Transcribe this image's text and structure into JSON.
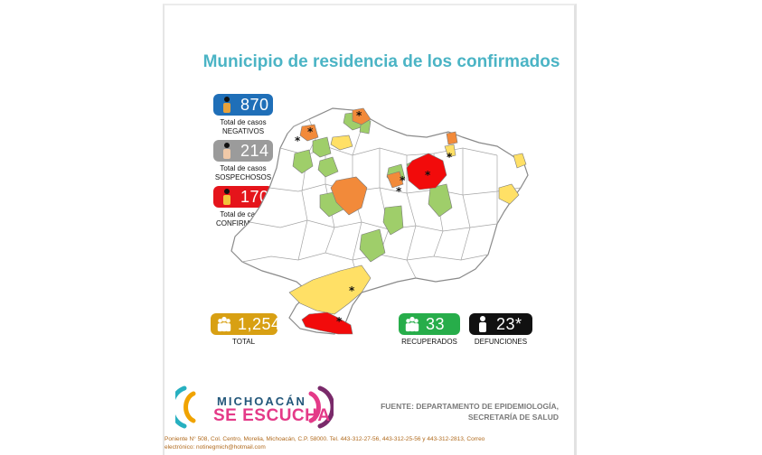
{
  "title": "Municipio de residencia de los confirmados",
  "stats": {
    "negativos": {
      "value": "870",
      "line1": "Total de casos",
      "line2": "NEGATIVOS",
      "color": "#1f6fb8"
    },
    "sospechosos": {
      "value": "214",
      "line1": "Total de casos",
      "line2": "SOSPECHOSOS",
      "color": "#9b9b9b"
    },
    "confirmados": {
      "value": "170",
      "line1": "Total de casos",
      "line2": "CONFIRMADOS",
      "color": "#e5141b"
    },
    "total": {
      "value": "1,254",
      "label": "TOTAL",
      "color": "#d8a013"
    },
    "recuperados": {
      "value": "33",
      "label": "RECUPERADOS",
      "color": "#27ad4a"
    },
    "defunciones": {
      "value": "23*",
      "label": "DEFUNCIONES",
      "color": "#111111"
    }
  },
  "map": {
    "marker": "*"
  },
  "logo": {
    "line1": "MICHOACÁN",
    "line2": "SE ESCUCHA"
  },
  "source": {
    "line1": "FUENTE: DEPARTAMENTO DE EPIDEMIOLOGÍA,",
    "line2": "SECRETARÍA DE SALUD"
  },
  "footer": {
    "line1": "Poniente N° 508, Col. Centro, Morelia, Michoacán, C.P. 58000. Tel. 443-312-27-56, 443-312-25-56 y 443-312-2813, Correo",
    "line2": "electrónico: notinegmich@hotmail.com"
  },
  "colors": {
    "confirmed_many": "#f20b0b",
    "confirmed_mid": "#f28a3a",
    "confirmed_few": "#ffe066",
    "recovered": "#9fce6a",
    "none": "#ffffff",
    "border": "#8a8a8a"
  }
}
